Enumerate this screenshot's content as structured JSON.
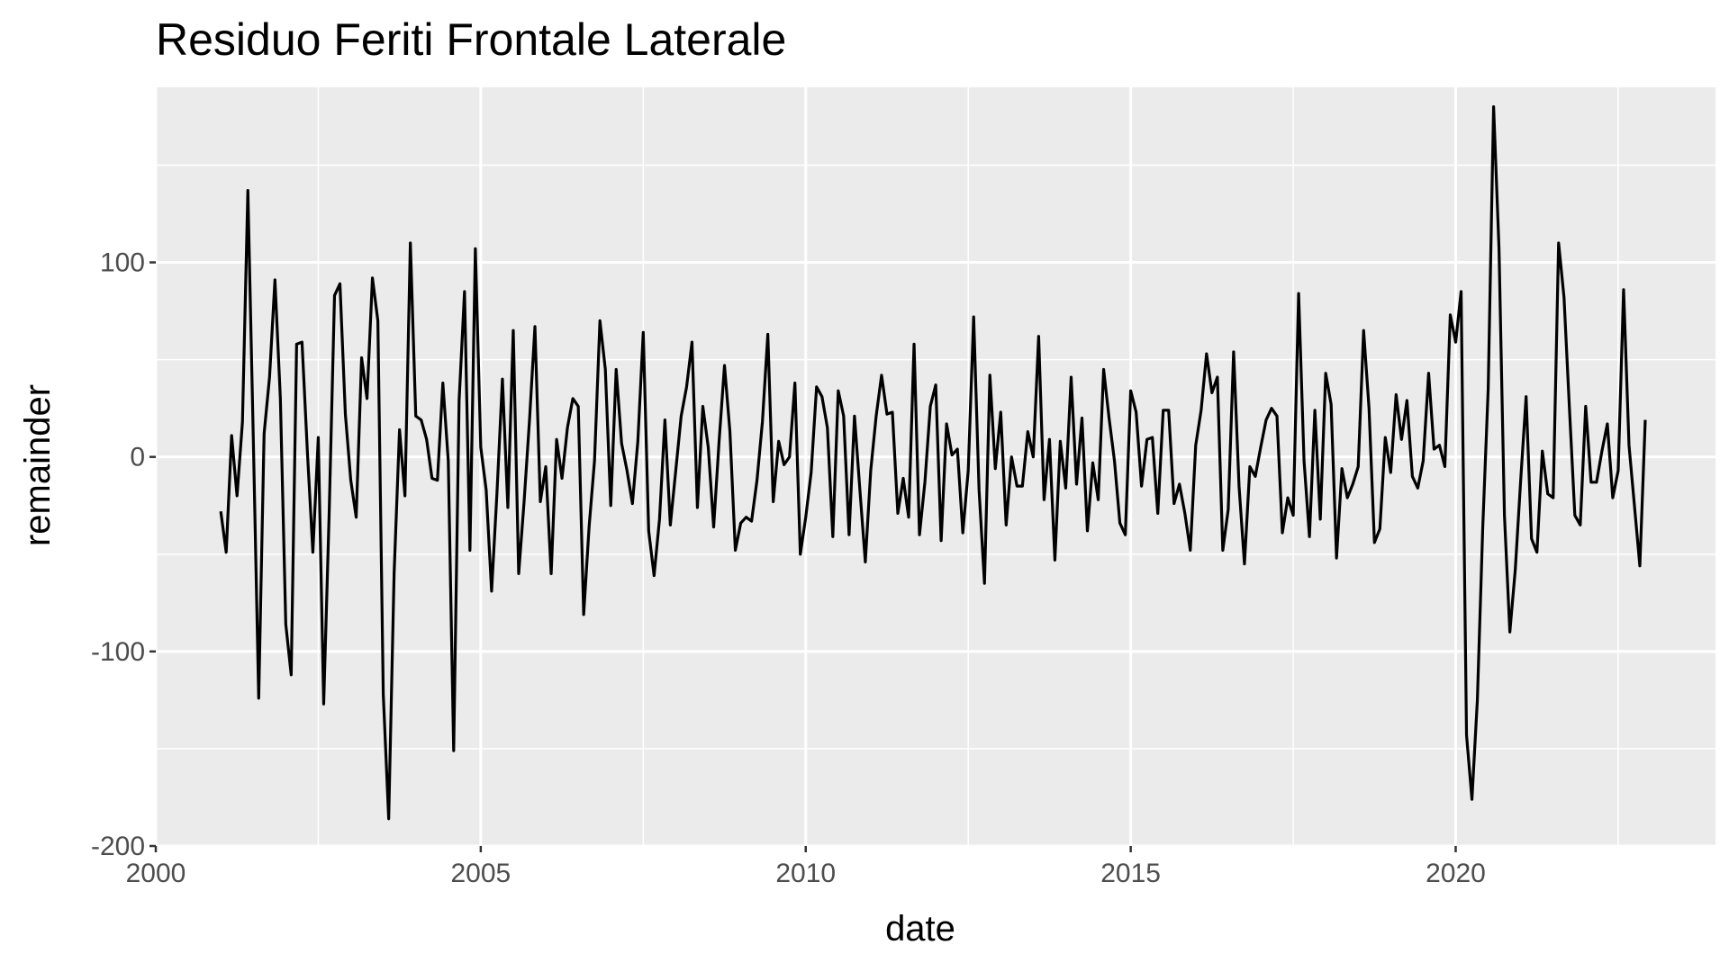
{
  "chart_data": {
    "type": "line",
    "title": "Residuo Feriti Frontale Laterale",
    "xlabel": "date",
    "ylabel": "remainder",
    "x_axis": {
      "type": "date",
      "range": [
        "2000-01-01",
        "2023-12-31"
      ],
      "ticks": [
        "2000",
        "2005",
        "2010",
        "2015",
        "2020"
      ]
    },
    "y_axis": {
      "range": [
        -200,
        190
      ],
      "ticks": [
        -200,
        -100,
        0,
        100
      ],
      "tick_labels": [
        "-200",
        "-100",
        "0",
        "100"
      ]
    },
    "grid": true,
    "legend": "none",
    "colors": {
      "panel": "#ebebeb",
      "grid": "#ffffff",
      "line": "#000000",
      "tick_text": "#4d4d4d",
      "tick_mark": "#333333"
    },
    "series": [
      {
        "start": "2001-01",
        "frequency": "monthly",
        "values": [
          -28,
          -49,
          11,
          -20,
          18,
          137,
          10,
          -124,
          12,
          41,
          91,
          30,
          -86,
          -112,
          58,
          59,
          2,
          -49,
          10,
          -127,
          -30,
          83,
          89,
          22,
          -12,
          -31,
          51,
          30,
          92,
          70,
          -122,
          -186,
          -60,
          14,
          -20,
          110,
          21,
          19,
          9,
          -11,
          -12,
          38,
          -2,
          -151,
          29,
          85,
          -48,
          107,
          5,
          -17,
          -69,
          -18,
          40,
          -26,
          65,
          -60,
          -23,
          19,
          67,
          -23,
          -5,
          -60,
          9,
          -11,
          15,
          30,
          26,
          -81,
          -36,
          -2,
          70,
          45,
          -25,
          45,
          7,
          -7,
          -24,
          8,
          64,
          -38,
          -61,
          -32,
          19,
          -35,
          -7,
          21,
          36,
          59,
          -26,
          26,
          5,
          -36,
          8,
          47,
          13,
          -48,
          -34,
          -31,
          -33,
          -12,
          18,
          63,
          -23,
          8,
          -4,
          0,
          38,
          -50,
          -31,
          -8,
          36,
          31,
          15,
          -41,
          34,
          21,
          -40,
          21,
          -17,
          -54,
          -7,
          21,
          42,
          22,
          23,
          -29,
          -11,
          -31,
          58,
          -40,
          -13,
          26,
          37,
          -43,
          17,
          1,
          4,
          -39,
          -7,
          72,
          -17,
          -65,
          42,
          -6,
          23,
          -35,
          0,
          -15,
          -15,
          13,
          0,
          62,
          -22,
          9,
          -53,
          8,
          -16,
          41,
          -14,
          20,
          -38,
          -3,
          -22,
          45,
          20,
          -2,
          -34,
          -40,
          34,
          23,
          -15,
          9,
          10,
          -29,
          24,
          24,
          -24,
          -14,
          -29,
          -48,
          6,
          24,
          53,
          33,
          41,
          -48,
          -27,
          54,
          -15,
          -55,
          -5,
          -10,
          5,
          19,
          25,
          21,
          -39,
          -21,
          -30,
          84,
          -2,
          -41,
          24,
          -32,
          43,
          27,
          -52,
          -6,
          -21,
          -14,
          -5,
          65,
          25,
          -44,
          -37,
          10,
          -8,
          32,
          9,
          29,
          -10,
          -16,
          -2,
          43,
          4,
          6,
          -5,
          73,
          59,
          85,
          -143,
          -176,
          -125,
          -36,
          35,
          180,
          107,
          -30,
          -90,
          -58,
          -12,
          31,
          -42,
          -49,
          3,
          -19,
          -21,
          110,
          82,
          25,
          -30,
          -35,
          26,
          -13,
          -13,
          3,
          17,
          -21,
          -7,
          86,
          6,
          -25,
          -56,
          19
        ]
      }
    ]
  }
}
